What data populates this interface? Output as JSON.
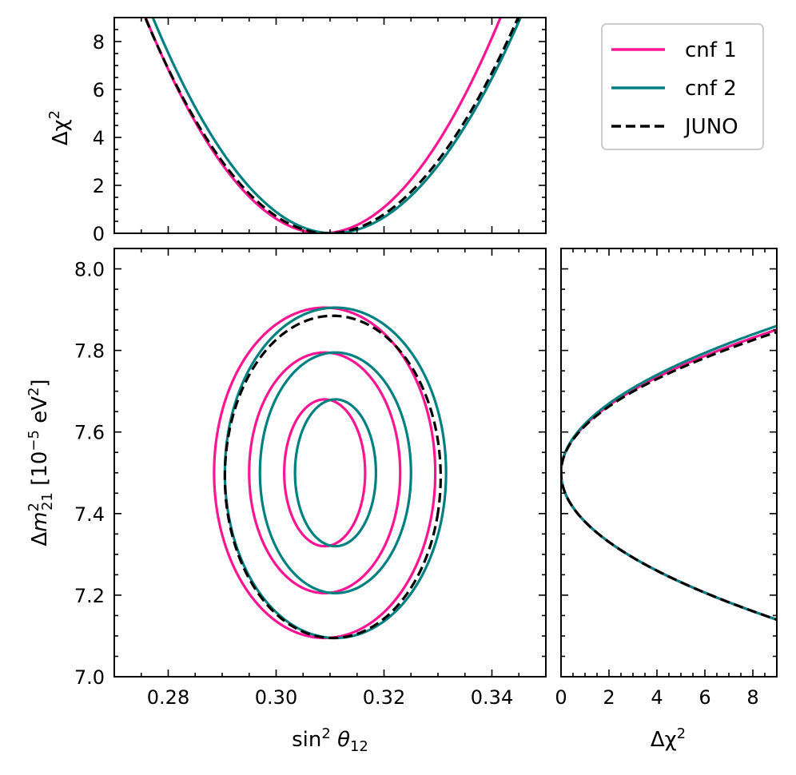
{
  "colors": {
    "cnf1": "#ff1493",
    "cnf2": "#008080",
    "juno": "#000000"
  },
  "chart_data": [
    {
      "id": "top",
      "type": "line",
      "title": "",
      "xlabel": "",
      "ylabel": "Δχ²",
      "ylabel_main": "Δχ",
      "ylabel_sup": "2",
      "xlim": [
        0.27,
        0.35
      ],
      "ylim": [
        0,
        9
      ],
      "yticks": [
        "0",
        "2",
        "4",
        "6",
        "8"
      ],
      "series": [
        {
          "name": "cnf 1",
          "min_at": 0.3085,
          "curvature_left": 8.42,
          "curvature_right": 8.22,
          "style": "solid"
        },
        {
          "name": "cnf 2",
          "min_at": 0.3105,
          "curvature_left": 8.09,
          "curvature_right": 7.43,
          "style": "solid"
        },
        {
          "name": "JUNO",
          "min_at": 0.3095,
          "curvature_left": 7.89,
          "curvature_right": 7.2,
          "style": "dashed"
        }
      ]
    },
    {
      "id": "main",
      "type": "line",
      "title": "",
      "xlabel": "sin² θ12",
      "ylabel": "Δm²21 [10⁻⁵ eV²]",
      "xlim": [
        0.27,
        0.35
      ],
      "ylim": [
        7.0,
        8.05
      ],
      "xticks": [
        "0.28",
        "0.30",
        "0.32",
        "0.34"
      ],
      "yticks": [
        "7.0",
        "7.2",
        "7.4",
        "7.6",
        "7.8",
        "8.0"
      ],
      "contour_levels": [
        "1σ",
        "2σ",
        "3σ"
      ],
      "series": [
        {
          "name": "cnf 1",
          "center": [
            0.309,
            7.5
          ],
          "contours": [
            {
              "a": 0.0075,
              "b": 0.18,
              "rot": -0.25
            },
            {
              "a": 0.014,
              "b": 0.295,
              "rot": -0.25
            },
            {
              "a": 0.0205,
              "b": 0.405,
              "rot": -0.25
            }
          ]
        },
        {
          "name": "cnf 2",
          "center": [
            0.311,
            7.5
          ],
          "contours": [
            {
              "a": 0.0075,
              "b": 0.18,
              "rot": -0.25
            },
            {
              "a": 0.014,
              "b": 0.295,
              "rot": -0.25
            },
            {
              "a": 0.0205,
              "b": 0.405,
              "rot": -0.25
            }
          ]
        },
        {
          "name": "JUNO",
          "center": [
            0.3105,
            7.49
          ],
          "contours": [
            {
              "a": 0.02,
              "b": 0.395,
              "rot": -0.25
            }
          ]
        }
      ]
    },
    {
      "id": "right",
      "type": "line",
      "title": "",
      "xlabel": "Δχ²",
      "xlabel_main": "Δχ",
      "xlabel_sup": "2",
      "ylabel": "",
      "xlim": [
        0,
        9
      ],
      "ylim": [
        7.0,
        8.05
      ],
      "xticks": [
        "0",
        "2",
        "4",
        "6",
        "8"
      ],
      "series": [
        {
          "name": "cnf 1",
          "min_at": 7.5,
          "sigma_up": 0.117,
          "sigma_down": 0.12,
          "style": "solid"
        },
        {
          "name": "cnf 2",
          "min_at": 7.5,
          "sigma_up": 0.12,
          "sigma_down": 0.12,
          "style": "solid"
        },
        {
          "name": "JUNO",
          "min_at": 7.5,
          "sigma_up": 0.115,
          "sigma_down": 0.12,
          "style": "dashed"
        }
      ]
    }
  ],
  "legend": {
    "position": "top-right",
    "entries": [
      {
        "label": "cnf 1",
        "series": "cnf1",
        "style": "solid"
      },
      {
        "label": "cnf 2",
        "series": "cnf2",
        "style": "solid"
      },
      {
        "label": "JUNO",
        "series": "juno",
        "style": "dashed"
      }
    ]
  }
}
